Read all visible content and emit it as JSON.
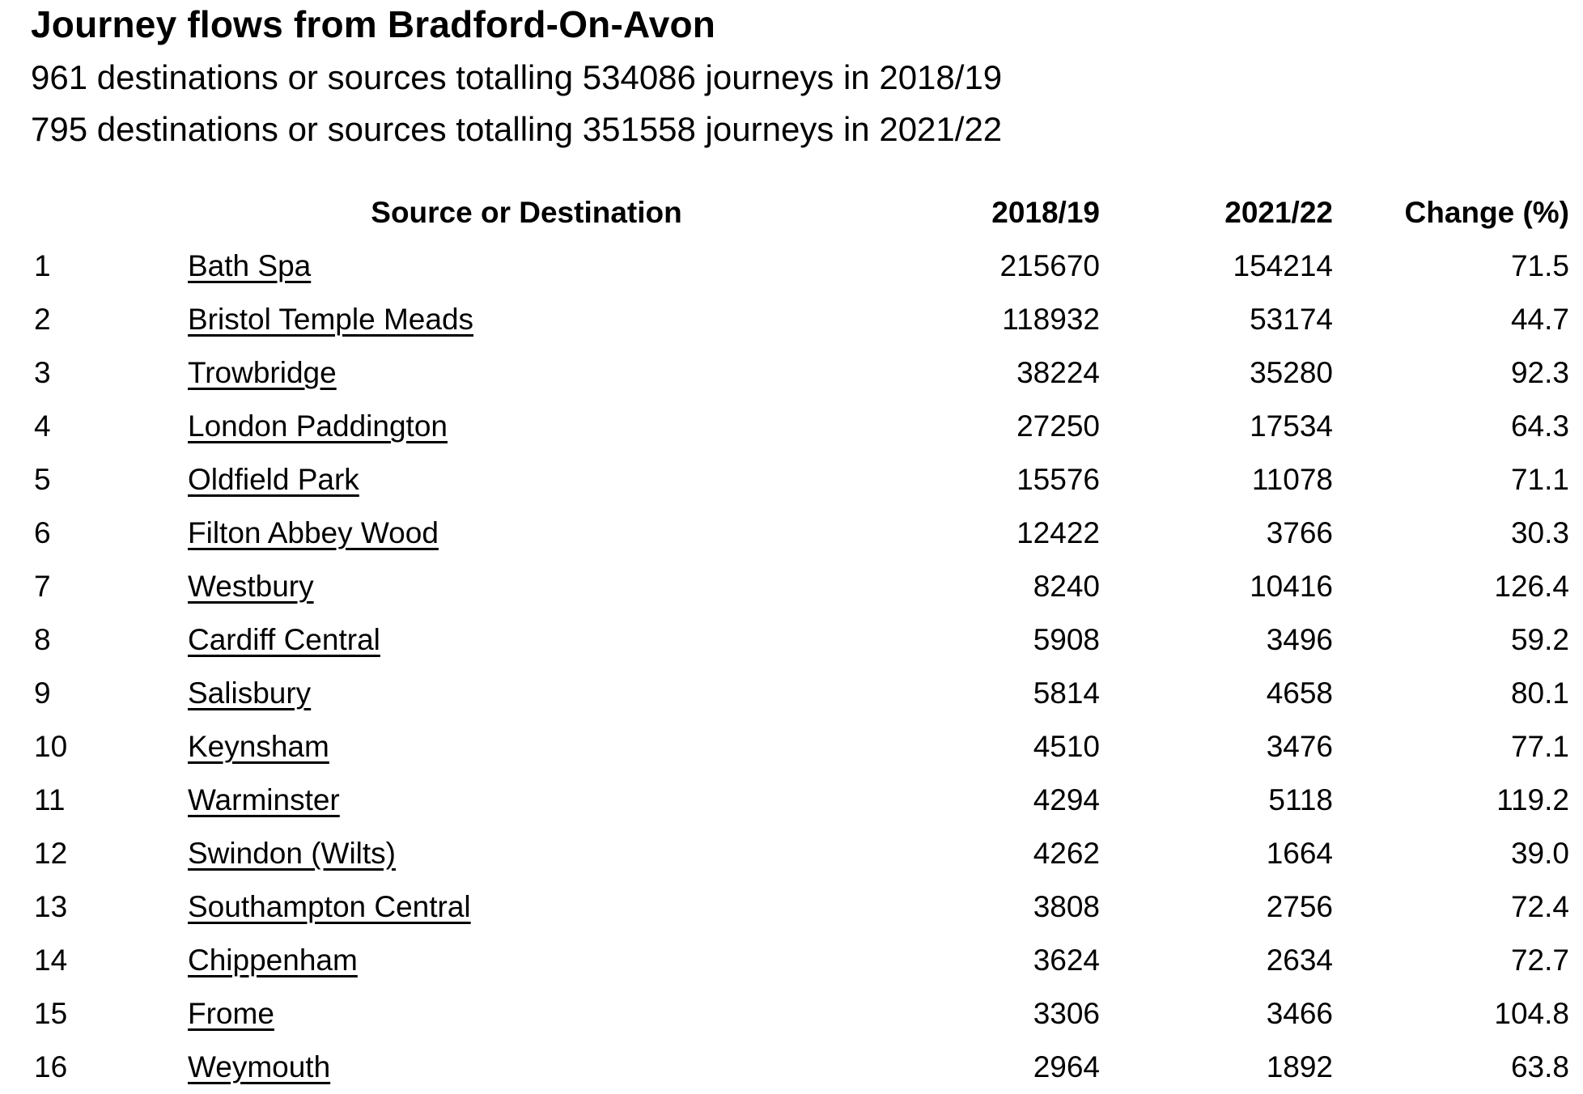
{
  "page": {
    "title": "Journey flows from Bradford-On-Avon",
    "summary_2018_19": "961 destinations or sources totalling 534086 journeys in 2018/19",
    "summary_2021_22": "795 destinations or sources totalling 351558 journeys in 2021/22"
  },
  "colors": {
    "text": "#000000",
    "background": "#ffffff"
  },
  "table": {
    "columns": {
      "rank": "",
      "station": "Source or Destination",
      "y2018": "2018/19",
      "y2021": "2021/22",
      "change": "Change (%)"
    },
    "rows": [
      {
        "rank": "1",
        "station": "Bath Spa",
        "y2018": "215670",
        "y2021": "154214",
        "change": "71.5"
      },
      {
        "rank": "2",
        "station": "Bristol Temple Meads",
        "y2018": "118932",
        "y2021": "53174",
        "change": "44.7"
      },
      {
        "rank": "3",
        "station": "Trowbridge",
        "y2018": "38224",
        "y2021": "35280",
        "change": "92.3"
      },
      {
        "rank": "4",
        "station": "London Paddington",
        "y2018": "27250",
        "y2021": "17534",
        "change": "64.3"
      },
      {
        "rank": "5",
        "station": "Oldfield Park",
        "y2018": "15576",
        "y2021": "11078",
        "change": "71.1"
      },
      {
        "rank": "6",
        "station": "Filton Abbey Wood",
        "y2018": "12422",
        "y2021": "3766",
        "change": "30.3"
      },
      {
        "rank": "7",
        "station": "Westbury",
        "y2018": "8240",
        "y2021": "10416",
        "change": "126.4"
      },
      {
        "rank": "8",
        "station": "Cardiff Central",
        "y2018": "5908",
        "y2021": "3496",
        "change": "59.2"
      },
      {
        "rank": "9",
        "station": "Salisbury",
        "y2018": "5814",
        "y2021": "4658",
        "change": "80.1"
      },
      {
        "rank": "10",
        "station": "Keynsham",
        "y2018": "4510",
        "y2021": "3476",
        "change": "77.1"
      },
      {
        "rank": "11",
        "station": "Warminster",
        "y2018": "4294",
        "y2021": "5118",
        "change": "119.2"
      },
      {
        "rank": "12",
        "station": "Swindon (Wilts)",
        "y2018": "4262",
        "y2021": "1664",
        "change": "39.0"
      },
      {
        "rank": "13",
        "station": "Southampton Central",
        "y2018": "3808",
        "y2021": "2756",
        "change": "72.4"
      },
      {
        "rank": "14",
        "station": "Chippenham",
        "y2018": "3624",
        "y2021": "2634",
        "change": "72.7"
      },
      {
        "rank": "15",
        "station": "Frome",
        "y2018": "3306",
        "y2021": "3466",
        "change": "104.8"
      },
      {
        "rank": "16",
        "station": "Weymouth",
        "y2018": "2964",
        "y2021": "1892",
        "change": "63.8"
      }
    ]
  }
}
